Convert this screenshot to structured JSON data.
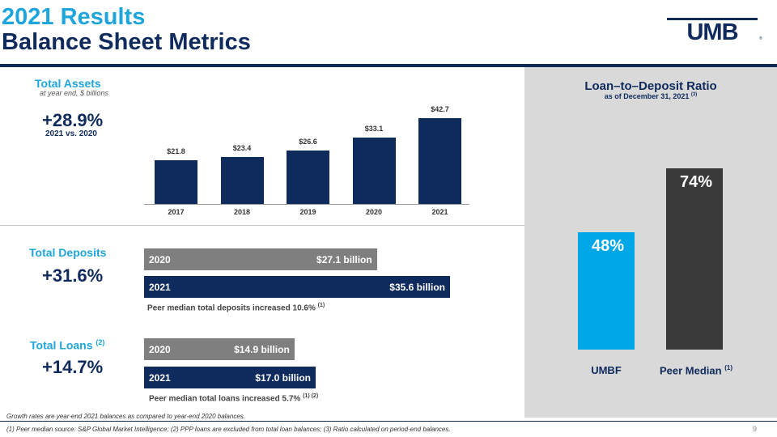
{
  "title": {
    "line1": "2021 Results",
    "line2": "Balance Sheet Metrics"
  },
  "logo": {
    "text": "UMB"
  },
  "total_assets": {
    "heading": "Total Assets",
    "subheading": "at year end, $ billions",
    "growth": "+28.9%",
    "growth_note": "2021 vs. 2020"
  },
  "chart_data": [
    {
      "type": "bar",
      "categories": [
        "2017",
        "2018",
        "2019",
        "2020",
        "2021"
      ],
      "values": [
        21.8,
        23.4,
        26.6,
        33.1,
        42.7
      ],
      "data_labels": [
        "$21.8",
        "$23.4",
        "$26.6",
        "$33.1",
        "$42.7"
      ],
      "ylim": [
        0,
        42.7
      ],
      "color": "#0f2a5c"
    },
    {
      "type": "bar",
      "categories": [
        "UMBF",
        "Peer Median"
      ],
      "values": [
        48,
        74
      ],
      "data_labels": [
        "48%",
        "74%"
      ],
      "colors": [
        "#00a7e6",
        "#3a3a3a"
      ],
      "ylim": [
        0,
        100
      ]
    }
  ],
  "total_deposits": {
    "heading": "Total Deposits",
    "growth": "+31.6%",
    "bars": [
      {
        "year": "2020",
        "label": "$27.1 billion",
        "value": 27.1,
        "color": "#7f7f7f"
      },
      {
        "year": "2021",
        "label": "$35.6 billion",
        "value": 35.6,
        "color": "#0f2a5c"
      }
    ],
    "note": "Peer median total deposits increased 10.6%",
    "note_ref": "(1)"
  },
  "total_loans": {
    "heading": "Total Loans",
    "heading_ref": "(2)",
    "growth": "+14.7%",
    "bars": [
      {
        "year": "2020",
        "label": "$14.9 billion",
        "value": 14.9,
        "color": "#7f7f7f"
      },
      {
        "year": "2021",
        "label": "$17.0 billion",
        "value": 17.0,
        "color": "#0f2a5c"
      }
    ],
    "note": "Peer median total loans increased 5.7%",
    "note_ref": "(1) (2)"
  },
  "ltd": {
    "heading": "Loan–to–Deposit Ratio",
    "subheading": "as of December 31, 2021",
    "sub_ref": "(3)",
    "umbf_label": "UMBF",
    "peer_label": "Peer Median",
    "peer_ref": "(1)"
  },
  "footnotes": {
    "growth_note": "Growth rates are year-end 2021 balances as compared to year-end 2020 balances.",
    "sources": "(1) Peer median source: S&P Global Market Intelligence; (2) PPP loans are excluded from total loan balances; (3) Ratio calculated on period-end balances.",
    "page": "9"
  }
}
